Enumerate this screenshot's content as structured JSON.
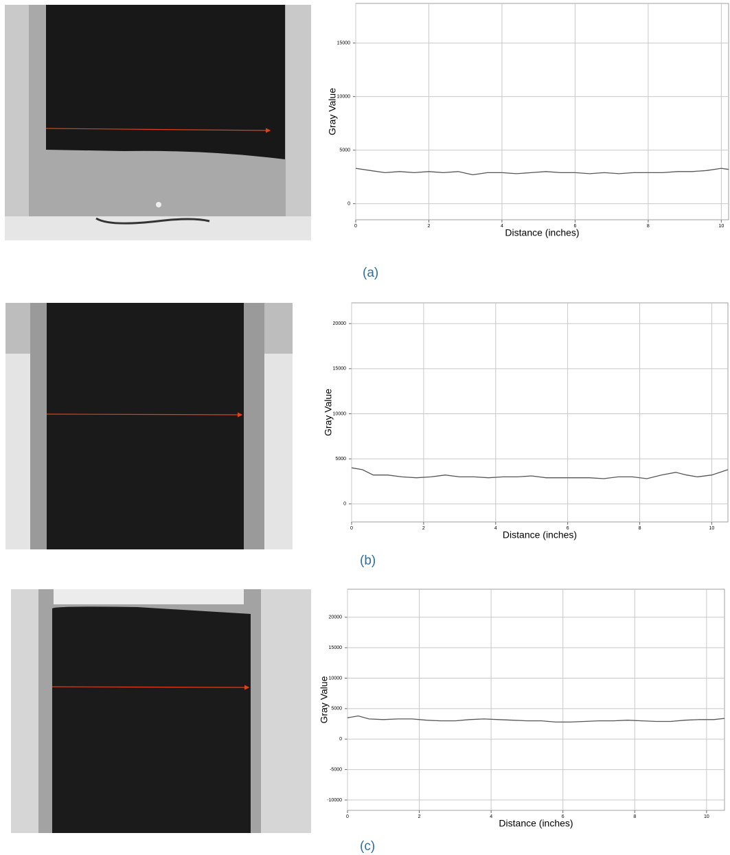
{
  "chart_data": [
    {
      "type": "line",
      "x_label": "Distance (inches)",
      "y_label": "Gray Value",
      "caption": "(a)",
      "x": [
        0,
        0.4,
        0.8,
        1.2,
        1.6,
        2.0,
        2.4,
        2.8,
        3.2,
        3.6,
        4.0,
        4.4,
        4.8,
        5.2,
        5.6,
        6.0,
        6.4,
        6.8,
        7.2,
        7.6,
        8.0,
        8.4,
        8.8,
        9.2,
        9.6,
        10.0,
        10.2
      ],
      "values": [
        3300,
        3100,
        2900,
        3000,
        2900,
        3000,
        2900,
        3000,
        2700,
        2900,
        2900,
        2800,
        2900,
        3000,
        2900,
        2900,
        2800,
        2900,
        2800,
        2900,
        2900,
        2900,
        3000,
        3000,
        3100,
        3300,
        3200
      ],
      "color": "#555555",
      "xlim": [
        0,
        10.2
      ],
      "ylim": [
        -1500,
        18700
      ],
      "xticks": [
        0,
        2,
        4,
        6,
        8,
        10
      ],
      "yticks": [
        0,
        5000,
        10000,
        15000
      ],
      "grid": true
    },
    {
      "type": "line",
      "x_label": "Distance (inches)",
      "y_label": "Gray Value",
      "caption": "(b)",
      "x": [
        0,
        0.3,
        0.6,
        1.0,
        1.4,
        1.8,
        2.2,
        2.6,
        3.0,
        3.4,
        3.8,
        4.2,
        4.6,
        5.0,
        5.4,
        5.8,
        6.2,
        6.6,
        7.0,
        7.4,
        7.8,
        8.2,
        8.6,
        9.0,
        9.3,
        9.6,
        10.0,
        10.45
      ],
      "values": [
        4000,
        3800,
        3200,
        3200,
        3000,
        2900,
        3000,
        3200,
        3000,
        3000,
        2900,
        3000,
        3000,
        3100,
        2900,
        2900,
        2900,
        2900,
        2800,
        3000,
        3000,
        2800,
        3200,
        3500,
        3200,
        3000,
        3200,
        3800
      ],
      "color": "#555555",
      "xlim": [
        0,
        10.45
      ],
      "ylim": [
        -2000,
        22300
      ],
      "xticks": [
        0,
        2,
        4,
        6,
        8,
        10
      ],
      "yticks": [
        0,
        5000,
        10000,
        15000,
        20000
      ],
      "grid": true
    },
    {
      "type": "line",
      "x_label": "Distance (inches)",
      "y_label": "Gray Value",
      "caption": "(c)",
      "x": [
        0,
        0.3,
        0.6,
        1.0,
        1.4,
        1.8,
        2.2,
        2.6,
        3.0,
        3.4,
        3.8,
        4.2,
        4.6,
        5.0,
        5.4,
        5.8,
        6.2,
        6.6,
        7.0,
        7.4,
        7.8,
        8.2,
        8.6,
        9.0,
        9.4,
        9.8,
        10.2,
        10.5
      ],
      "values": [
        3500,
        3800,
        3300,
        3200,
        3300,
        3300,
        3100,
        3000,
        3000,
        3200,
        3300,
        3200,
        3100,
        3000,
        3000,
        2800,
        2800,
        2900,
        3000,
        3000,
        3100,
        3000,
        2900,
        2900,
        3100,
        3200,
        3200,
        3400
      ],
      "color": "#555555",
      "xlim": [
        0,
        10.5
      ],
      "ylim": [
        -11700,
        24600
      ],
      "xticks": [
        0,
        2,
        4,
        6,
        8,
        10
      ],
      "yticks": [
        -10000,
        -5000,
        0,
        5000,
        10000,
        15000,
        20000
      ],
      "grid": true
    }
  ]
}
